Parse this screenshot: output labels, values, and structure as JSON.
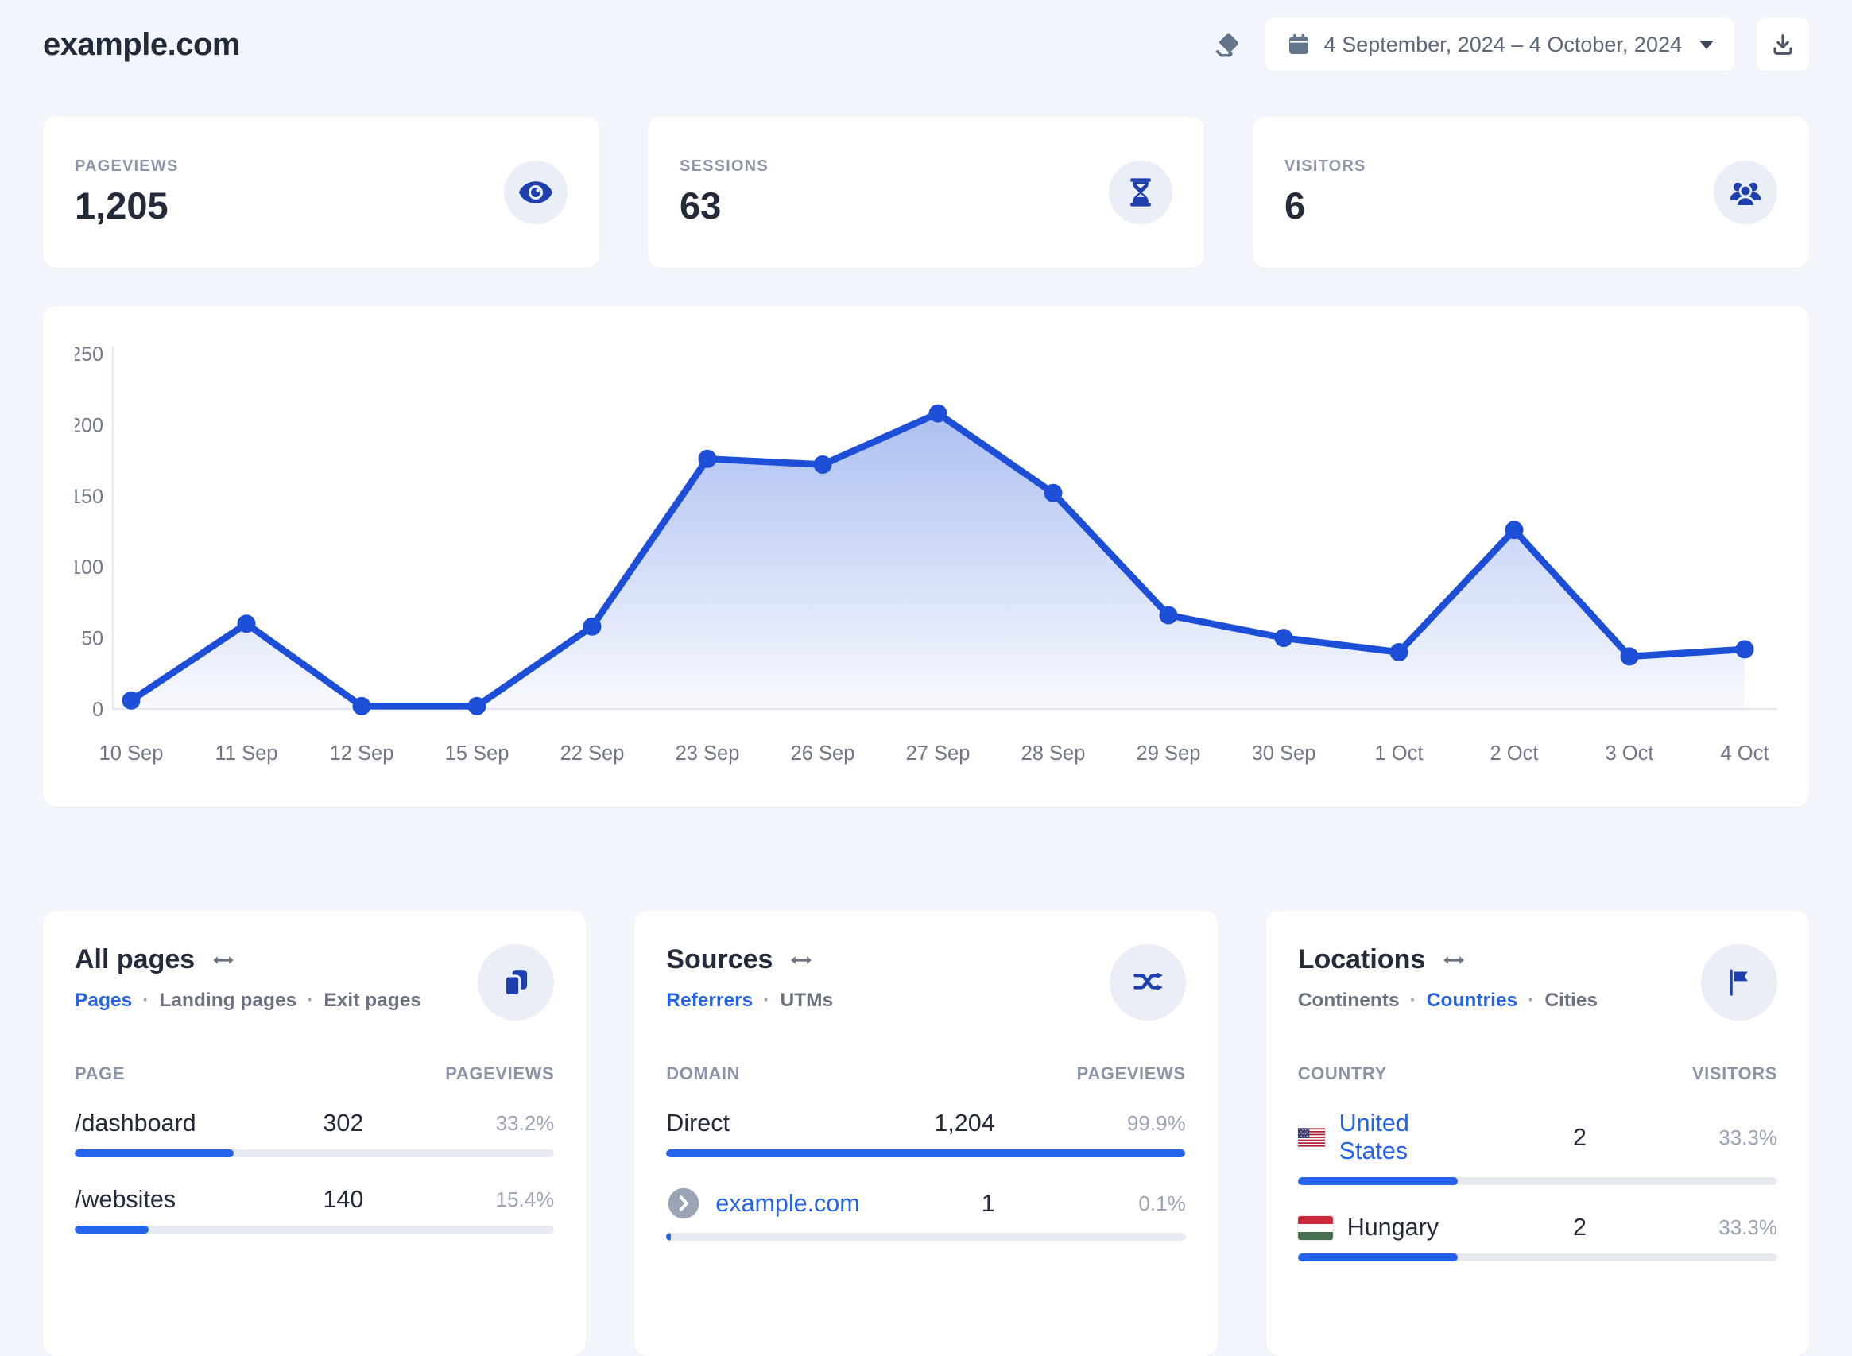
{
  "colors": {
    "accent": "#2563eb",
    "chart_line": "#1d4ed8",
    "icon_blue": "#1e40af",
    "page_background": "#f2f5fc"
  },
  "header": {
    "site_title": "example.com",
    "date_range": "4 September, 2024 – 4 October, 2024",
    "icons": {
      "clear": "eraser-icon",
      "calendar": "calendar-icon",
      "caret": "caret-down-icon",
      "download": "download-icon"
    }
  },
  "stats": [
    {
      "label": "PAGEVIEWS",
      "value": "1,205",
      "icon": "eye-icon"
    },
    {
      "label": "SESSIONS",
      "value": "63",
      "icon": "hourglass-icon"
    },
    {
      "label": "VISITORS",
      "value": "6",
      "icon": "people-group-icon"
    }
  ],
  "chart_data": {
    "type": "area",
    "series_name": "Pageviews",
    "x": [
      "10 Sep",
      "11 Sep",
      "12 Sep",
      "15 Sep",
      "22 Sep",
      "23 Sep",
      "26 Sep",
      "27 Sep",
      "28 Sep",
      "29 Sep",
      "30 Sep",
      "1 Oct",
      "2 Oct",
      "3 Oct",
      "4 Oct"
    ],
    "values": [
      6,
      60,
      2,
      2,
      58,
      176,
      172,
      208,
      152,
      66,
      50,
      40,
      126,
      37,
      42
    ],
    "ylim": [
      0,
      250
    ],
    "yticks": [
      0,
      50,
      100,
      150,
      200,
      250
    ],
    "xlabel": "",
    "ylabel": "",
    "grid": false,
    "legend": false,
    "line_color": "#1d4ed8",
    "fill_gradient_top": "rgba(38,87,217,0.45)",
    "fill_gradient_bottom": "rgba(38,87,217,0.03)"
  },
  "cards": {
    "pages": {
      "title": "All pages",
      "compare_icon": "left-right-arrow-icon",
      "action_icon": "copy-icon",
      "tabs": [
        {
          "label": "Pages"
        },
        {
          "label": "Landing pages"
        },
        {
          "label": "Exit pages"
        }
      ],
      "col_name": "PAGE",
      "col_value": "PAGEVIEWS",
      "rows": [
        {
          "name": "/dashboard",
          "value": "302",
          "percent": "33.2%"
        },
        {
          "name": "/websites",
          "value": "140",
          "percent": "15.4%"
        }
      ]
    },
    "sources": {
      "title": "Sources",
      "compare_icon": "left-right-arrow-icon",
      "action_icon": "shuffle-icon",
      "tabs": [
        {
          "label": "Referrers"
        },
        {
          "label": "UTMs"
        }
      ],
      "col_name": "DOMAIN",
      "col_value": "PAGEVIEWS",
      "rows": [
        {
          "name": "Direct",
          "value": "1,204",
          "percent": "99.9%"
        },
        {
          "name": "example.com",
          "value": "1",
          "percent": "0.1%",
          "icon": "chevron-circle-icon"
        }
      ]
    },
    "locations": {
      "title": "Locations",
      "compare_icon": "left-right-arrow-icon",
      "action_icon": "flag-icon",
      "tabs": [
        {
          "label": "Continents"
        },
        {
          "label": "Countries"
        },
        {
          "label": "Cities"
        }
      ],
      "col_name": "COUNTRY",
      "col_value": "VISITORS",
      "rows": [
        {
          "name": "United States",
          "value": "2",
          "percent": "33.3%",
          "icon": "us-flag-icon"
        },
        {
          "name": "Hungary",
          "value": "2",
          "percent": "33.3%",
          "icon": "hungary-flag-icon"
        }
      ]
    }
  }
}
